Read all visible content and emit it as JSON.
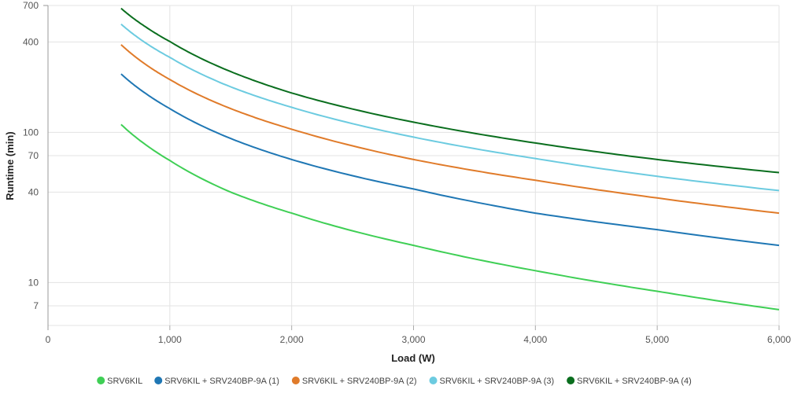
{
  "chart_data": {
    "type": "line",
    "title": "",
    "xlabel": "Load (W)",
    "ylabel": "Runtime (min)",
    "xscale": "linear",
    "yscale": "log",
    "xlim": [
      0,
      6000
    ],
    "ylim": [
      5.2,
      700
    ],
    "xticks": [
      0,
      1000,
      2000,
      3000,
      4000,
      5000,
      6000
    ],
    "xtick_labels": [
      "0",
      "1,000",
      "2,000",
      "3,000",
      "4,000",
      "5,000",
      "6,000"
    ],
    "yticks": [
      7,
      10,
      40,
      70,
      100,
      400,
      700
    ],
    "ytick_labels": [
      "7",
      "10",
      "40",
      "70",
      "100",
      "400",
      "700"
    ],
    "grid": true,
    "legend_position": "bottom",
    "x": [
      600,
      800,
      1000,
      1500,
      2000,
      3000,
      4000,
      5000,
      6000
    ],
    "series": [
      {
        "name": "SRV6KIL",
        "color": "#3fcf55",
        "values": [
          113,
          83,
          65,
          40,
          29,
          17.7,
          12,
          8.75,
          6.6
        ]
      },
      {
        "name": "SRV6KIL + SRV240BP-9A (1)",
        "color": "#1f77b4",
        "values": [
          245,
          182,
          144,
          91,
          66,
          42,
          29,
          22.5,
          17.7
        ]
      },
      {
        "name": "SRV6KIL + SRV240BP-9A (2)",
        "color": "#e07b2a",
        "values": [
          384,
          284,
          225,
          144,
          105,
          66,
          48,
          36.6,
          29
        ]
      },
      {
        "name": "SRV6KIL + SRV240BP-9A (3)",
        "color": "#6ccbe0",
        "values": [
          526,
          395,
          316,
          201,
          147,
          93,
          67,
          51,
          41
        ]
      },
      {
        "name": "SRV6KIL + SRV240BP-9A (4)",
        "color": "#0a6e1e",
        "values": [
          670,
          505,
          403,
          254,
          183,
          117,
          85,
          66,
          54
        ]
      }
    ]
  }
}
